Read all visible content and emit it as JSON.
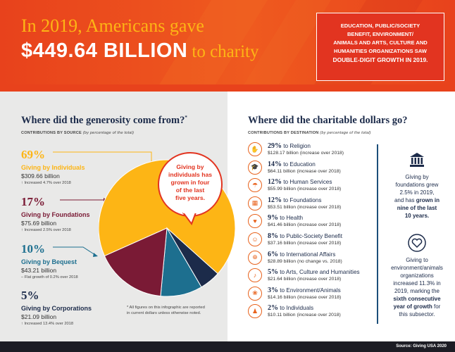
{
  "header": {
    "line1": "In 2019, Americans gave",
    "amount": "$449.64 BILLION",
    "to_charity": "to charity",
    "callout_line1": "EDUCATION, PUBLIC/SOCIETY",
    "callout_line2": "BENEFIT, ENVIRONMENT/",
    "callout_line3": "ANIMALS AND ARTS, CULTURE AND",
    "callout_line4": "HUMANITIES ORGANIZATIONS SAW",
    "callout_line5": "DOUBLE-DIGIT GROWTH IN 2019."
  },
  "sources": {
    "title": "Where did the generosity come from?",
    "title_mark": "*",
    "subtitle": "CONTRIBUTIONS BY SOURCE",
    "subtitle_note": "(by percentage of the total)",
    "items": [
      {
        "pct": "69%",
        "label": "Giving by Individuals",
        "amount": "$309.66 billion",
        "note": "Increased 4.7% over 2018",
        "arrow": "↑",
        "color": "#fdb515"
      },
      {
        "pct": "17%",
        "label": "Giving by Foundations",
        "amount": "$75.69 billion",
        "note": "Increased 2.5% over 2018",
        "arrow": "↑",
        "color": "#7a1a35"
      },
      {
        "pct": "10%",
        "label": "Giving by Bequest",
        "amount": "$43.21 billion",
        "note": "Flat growth of 0.2% over 2018",
        "arrow": "–",
        "color": "#1d6f8f"
      },
      {
        "pct": "5%",
        "label": "Giving by Corporations",
        "amount": "$21.09 billion",
        "note": "Increased 13.4% over 2018",
        "arrow": "↑",
        "color": "#1c2b4a"
      }
    ],
    "bubble_line1": "Giving by",
    "bubble_line2": "individuals has",
    "bubble_line3": "grown in four",
    "bubble_line4": "of the last",
    "bubble_line5": "five years.",
    "footnote_line1": "* All figures on this infographic are reported",
    "footnote_line2": "in current dollars unless otherwise noted."
  },
  "chart_data": {
    "type": "pie",
    "categories": [
      "Giving by Individuals",
      "Giving by Foundations",
      "Giving by Bequest",
      "Giving by Corporations"
    ],
    "values": [
      69,
      17,
      10,
      5
    ],
    "colors": [
      "#fdb515",
      "#7a1a35",
      "#1d6f8f",
      "#1c2b4a"
    ]
  },
  "destinations": {
    "title": "Where did the charitable dollars go?",
    "subtitle": "CONTRIBUTIONS BY DESTINATION",
    "subtitle_note": "(by percentage of the total)",
    "items": [
      {
        "pct": "29%",
        "label": "to Religion",
        "amount": "$128.17 billion (increase over 2018)",
        "icon": "religion-icon",
        "glyph": "✋"
      },
      {
        "pct": "14%",
        "label": "to Education",
        "amount": "$64.11 billion (increase over 2018)",
        "icon": "education-icon",
        "glyph": "🎓"
      },
      {
        "pct": "12%",
        "label": "to Human Services",
        "amount": "$55.99 billion (increase over 2018)",
        "icon": "human-services-icon",
        "glyph": "☂"
      },
      {
        "pct": "12%",
        "label": "to Foundations",
        "amount": "$53.51 billion (increase over 2018)",
        "icon": "foundations-icon",
        "glyph": "▦"
      },
      {
        "pct": "9%",
        "label": "to Health",
        "amount": "$41.46 billion (increase over 2018)",
        "icon": "health-icon",
        "glyph": "♥"
      },
      {
        "pct": "8%",
        "label": "to Public-Society Benefit",
        "amount": "$37.16 billion (increase over 2018)",
        "icon": "public-benefit-icon",
        "glyph": "☺"
      },
      {
        "pct": "6%",
        "label": "to International Affairs",
        "amount": "$28.89 billion (no change vs. 2018)",
        "icon": "international-icon",
        "glyph": "⊕"
      },
      {
        "pct": "5%",
        "label": "to Arts, Culture and Humanities",
        "amount": "$21.64 billion (increase over 2018)",
        "icon": "arts-icon",
        "glyph": "♪"
      },
      {
        "pct": "3%",
        "label": "to Environment/Animals",
        "amount": "$14.16 billion (increase over 2018)",
        "icon": "environment-icon",
        "glyph": "❀"
      },
      {
        "pct": "2%",
        "label": "to Individuals",
        "amount": "$10.11 billion (increase over 2018)",
        "icon": "individuals-icon",
        "glyph": "♟"
      }
    ]
  },
  "side": {
    "block1_l1": "Giving by",
    "block1_l2": "foundations grew",
    "block1_l3": "2.5% in 2019,",
    "block1_l4": "and has",
    "block1_bold1": "grown in",
    "block1_bold2": "nine of the last",
    "block1_bold3": "10 years.",
    "block2_l1": "Giving to",
    "block2_l2": "environment/animals",
    "block2_l3": "organizations",
    "block2_l4": "increased 11.3% in",
    "block2_l5": "2019, marking the",
    "block2_bold1": "sixth consecutive",
    "block2_bold2": "year of growth",
    "block2_l6": "for",
    "block2_l7": "this subsector."
  },
  "footer": {
    "source": "Source: Giving USA 2020"
  }
}
